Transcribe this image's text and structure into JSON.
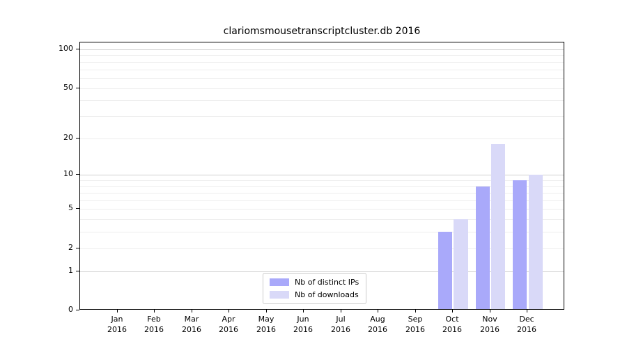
{
  "figure": {
    "title": "clariomsmousetranscriptcluster.db 2016"
  },
  "chart_data": {
    "type": "bar",
    "title": "clariomsmousetranscriptcluster.db 2016",
    "categories": [
      "Jan",
      "Feb",
      "Mar",
      "Apr",
      "May",
      "Jun",
      "Jul",
      "Aug",
      "Sep",
      "Oct",
      "Nov",
      "Dec"
    ],
    "x_tick_second_line": "2016",
    "series": [
      {
        "name": "Nb of distinct IPs",
        "color": "#a9a9fa",
        "values": [
          0,
          0,
          0,
          0,
          0,
          0,
          0,
          0,
          0,
          3,
          8,
          9
        ]
      },
      {
        "name": "Nb of downloads",
        "color": "#d9d9f8",
        "values": [
          0,
          0,
          0,
          0,
          0,
          0,
          0,
          0,
          0,
          4,
          18,
          10
        ]
      }
    ],
    "xlabel": "",
    "ylabel": "",
    "y_ticks": [
      100,
      50,
      20,
      10,
      5,
      2,
      1,
      0
    ],
    "y_scale": "log10(value+1)",
    "ylim": [
      0,
      113
    ],
    "grid": {
      "major_values": [
        1,
        10,
        100
      ],
      "minor_values": [
        2,
        3,
        4,
        5,
        6,
        7,
        8,
        9,
        20,
        30,
        40,
        50,
        60,
        70,
        80,
        90
      ]
    },
    "legend": {
      "position": "lower center",
      "entries": [
        "Nb of distinct IPs",
        "Nb of downloads"
      ]
    }
  }
}
